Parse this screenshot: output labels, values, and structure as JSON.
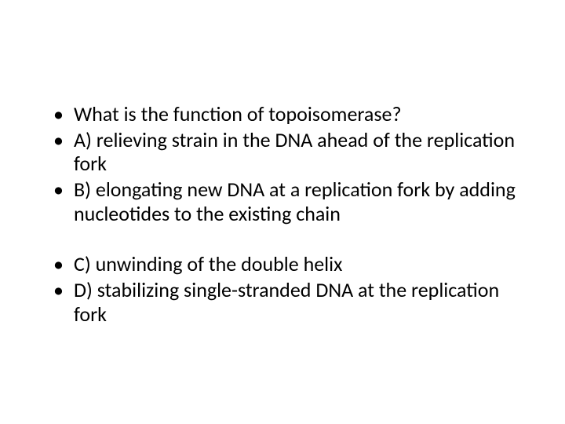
{
  "slide": {
    "background_color": "#ffffff",
    "text_color": "#000000",
    "font_family": "Calibri",
    "font_size_pt": 26,
    "bullets_group1": [
      "What is the function of topoisomerase?",
      "A)  relieving strain in the DNA ahead of the replication fork",
      "B)  elongating new DNA at a replication fork by adding nucleotides to the existing chain"
    ],
    "bullets_group2": [
      "C)  unwinding of the double helix",
      "D)  stabilizing single-stranded DNA at the replication fork"
    ]
  }
}
